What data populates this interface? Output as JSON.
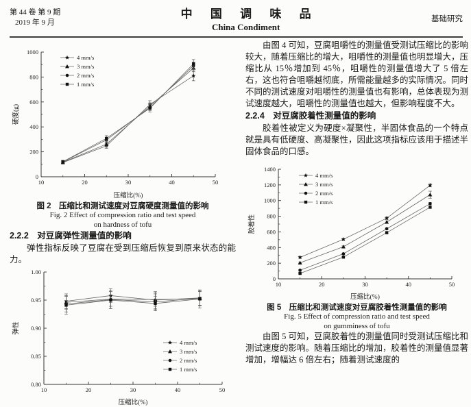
{
  "header": {
    "volume_issue": "第 44 卷 第 9 期",
    "date": "2019 年 9 月",
    "journal_cn": "中 国 调 味 品",
    "journal_en": "China Condiment",
    "section_label": "基础研究"
  },
  "left": {
    "fig2_caption_cn": "图 2　压缩比和测试速度对豆腐硬度测量值的影响",
    "fig2_caption_en1": "Fig. 2 Effect of compression ratio and test speed",
    "fig2_caption_en2": "on hardness of tofu",
    "s222_heading": "2.2.2　对豆腐弹性测量值的影响",
    "s222_body": "弹性指标反映了豆腐在受到压缩后恢复到原来状态的能力。"
  },
  "right": {
    "para_fig4": "由图 4 可知，豆腐咀嚼性的测量值受测试压缩比的影响较大，随着压缩比的增大，咀嚼性的测量值也明显增大，压缩比从 15％增加到 45％，咀嚼性的测量值增大了 5 倍左右，这也符合咀嚼越彻底，所需能量越多的实际情况。同时不同的测试速度对咀嚼性的测量值也有影响，总体表现为测试速度越大，咀嚼性的测量值也越大，但影响程度不大。",
    "s224_heading": "2.2.4　对豆腐胶着性测量值的影响",
    "s224_body": "胶着性被定义为硬度×凝聚性，半固体食品的一个特点就是具有低硬度、高凝聚性，因此这项指标应该用于描述半固体食品的口感。",
    "fig5_caption_cn": "图 5　压缩比和测试速度对豆腐胶着性测量值的影响",
    "fig5_caption_en1": "Fig. 5 Effect of compression ratio and test speed",
    "fig5_caption_en2": "on gumminess of tofu",
    "para_fig5": "由图 5 可知，豆腐胶着性的测量值同时受测试压缩比和测试速度的影响。随着压缩比的增加，胶着性的测量值显著增加，增幅达 6 倍左右；随着测试速度的"
  },
  "chart_data": [
    {
      "id": "fig2",
      "type": "line",
      "title": "",
      "xlabel": "压缩比(%)",
      "ylabel": "硬度(g)",
      "x": [
        15,
        25,
        35,
        45
      ],
      "xlim": [
        10,
        50
      ],
      "xticks": [
        10,
        20,
        30,
        40,
        50
      ],
      "xminor": 5,
      "ylim": [
        0,
        1000
      ],
      "yticks": [
        0,
        200,
        400,
        600,
        800,
        1000
      ],
      "yminor": 100,
      "legend_position": "upper-left",
      "grid": false,
      "series": [
        {
          "name": "4 mm/s",
          "marker": "star",
          "values": [
            114,
            248,
            580,
            810
          ],
          "err": [
            12,
            20,
            30,
            40
          ]
        },
        {
          "name": "3 mm/s",
          "marker": "triangle",
          "values": [
            116,
            262,
            568,
            872
          ],
          "err": [
            10,
            18,
            25,
            30
          ]
        },
        {
          "name": "2 mm/s",
          "marker": "circle",
          "values": [
            119,
            296,
            556,
            890
          ],
          "err": [
            10,
            20,
            26,
            28
          ]
        },
        {
          "name": "1 mm/s",
          "marker": "square",
          "values": [
            121,
            308,
            550,
            906
          ],
          "err": [
            10,
            22,
            30,
            34
          ]
        }
      ]
    },
    {
      "id": "fig3",
      "type": "line",
      "title": "",
      "xlabel": "压缩比(%)",
      "ylabel": "弹性",
      "x": [
        15,
        25,
        35,
        45
      ],
      "xlim": [
        10,
        50
      ],
      "xticks": [
        10,
        20,
        30,
        40,
        50
      ],
      "xminor": 5,
      "ylim": [
        0.8,
        1.0
      ],
      "yticks": [
        0.8,
        0.85,
        0.9,
        0.95,
        1.0
      ],
      "yminor": 0.025,
      "ydecimals": 2,
      "legend_position": "lower-right",
      "grid": false,
      "series": [
        {
          "name": "4 mm/s",
          "marker": "star",
          "values": [
            0.948,
            0.958,
            0.95,
            0.954
          ],
          "err": [
            0.013,
            0.012,
            0.015,
            0.014
          ]
        },
        {
          "name": "3 mm/s",
          "marker": "triangle",
          "values": [
            0.946,
            0.952,
            0.951,
            0.953
          ],
          "err": [
            0.012,
            0.013,
            0.012,
            0.012
          ]
        },
        {
          "name": "2 mm/s",
          "marker": "circle",
          "values": [
            0.943,
            0.951,
            0.947,
            0.953
          ],
          "err": [
            0.014,
            0.016,
            0.014,
            0.013
          ]
        },
        {
          "name": "1 mm/s",
          "marker": "square",
          "values": [
            0.941,
            0.95,
            0.944,
            0.952
          ],
          "err": [
            0.016,
            0.015,
            0.013,
            0.016
          ]
        }
      ]
    },
    {
      "id": "fig5",
      "type": "line",
      "title": "",
      "xlabel": "压缩比(%)",
      "ylabel": "胶着性",
      "x": [
        15,
        25,
        35,
        45
      ],
      "xlim": [
        10,
        50
      ],
      "xticks": [
        10,
        20,
        30,
        40,
        50
      ],
      "xminor": 5,
      "ylim": [
        0,
        1400
      ],
      "yticks": [
        0,
        200,
        400,
        600,
        800,
        1000,
        1200,
        1400
      ],
      "yminor": 100,
      "legend_position": "upper-left",
      "grid": false,
      "series": [
        {
          "name": "4 mm/s",
          "marker": "star",
          "values": [
            275,
            505,
            775,
            1195
          ],
          "err": [
            12,
            12,
            16,
            20
          ]
        },
        {
          "name": "3 mm/s",
          "marker": "triangle",
          "values": [
            205,
            410,
            725,
            1075
          ],
          "err": [
            10,
            12,
            15,
            45
          ]
        },
        {
          "name": "2 mm/s",
          "marker": "circle",
          "values": [
            110,
            320,
            640,
            960
          ],
          "err": [
            8,
            10,
            12,
            15
          ]
        },
        {
          "name": "1 mm/s",
          "marker": "square",
          "values": [
            70,
            278,
            590,
            915
          ],
          "err": [
            8,
            10,
            12,
            15
          ]
        }
      ]
    }
  ]
}
